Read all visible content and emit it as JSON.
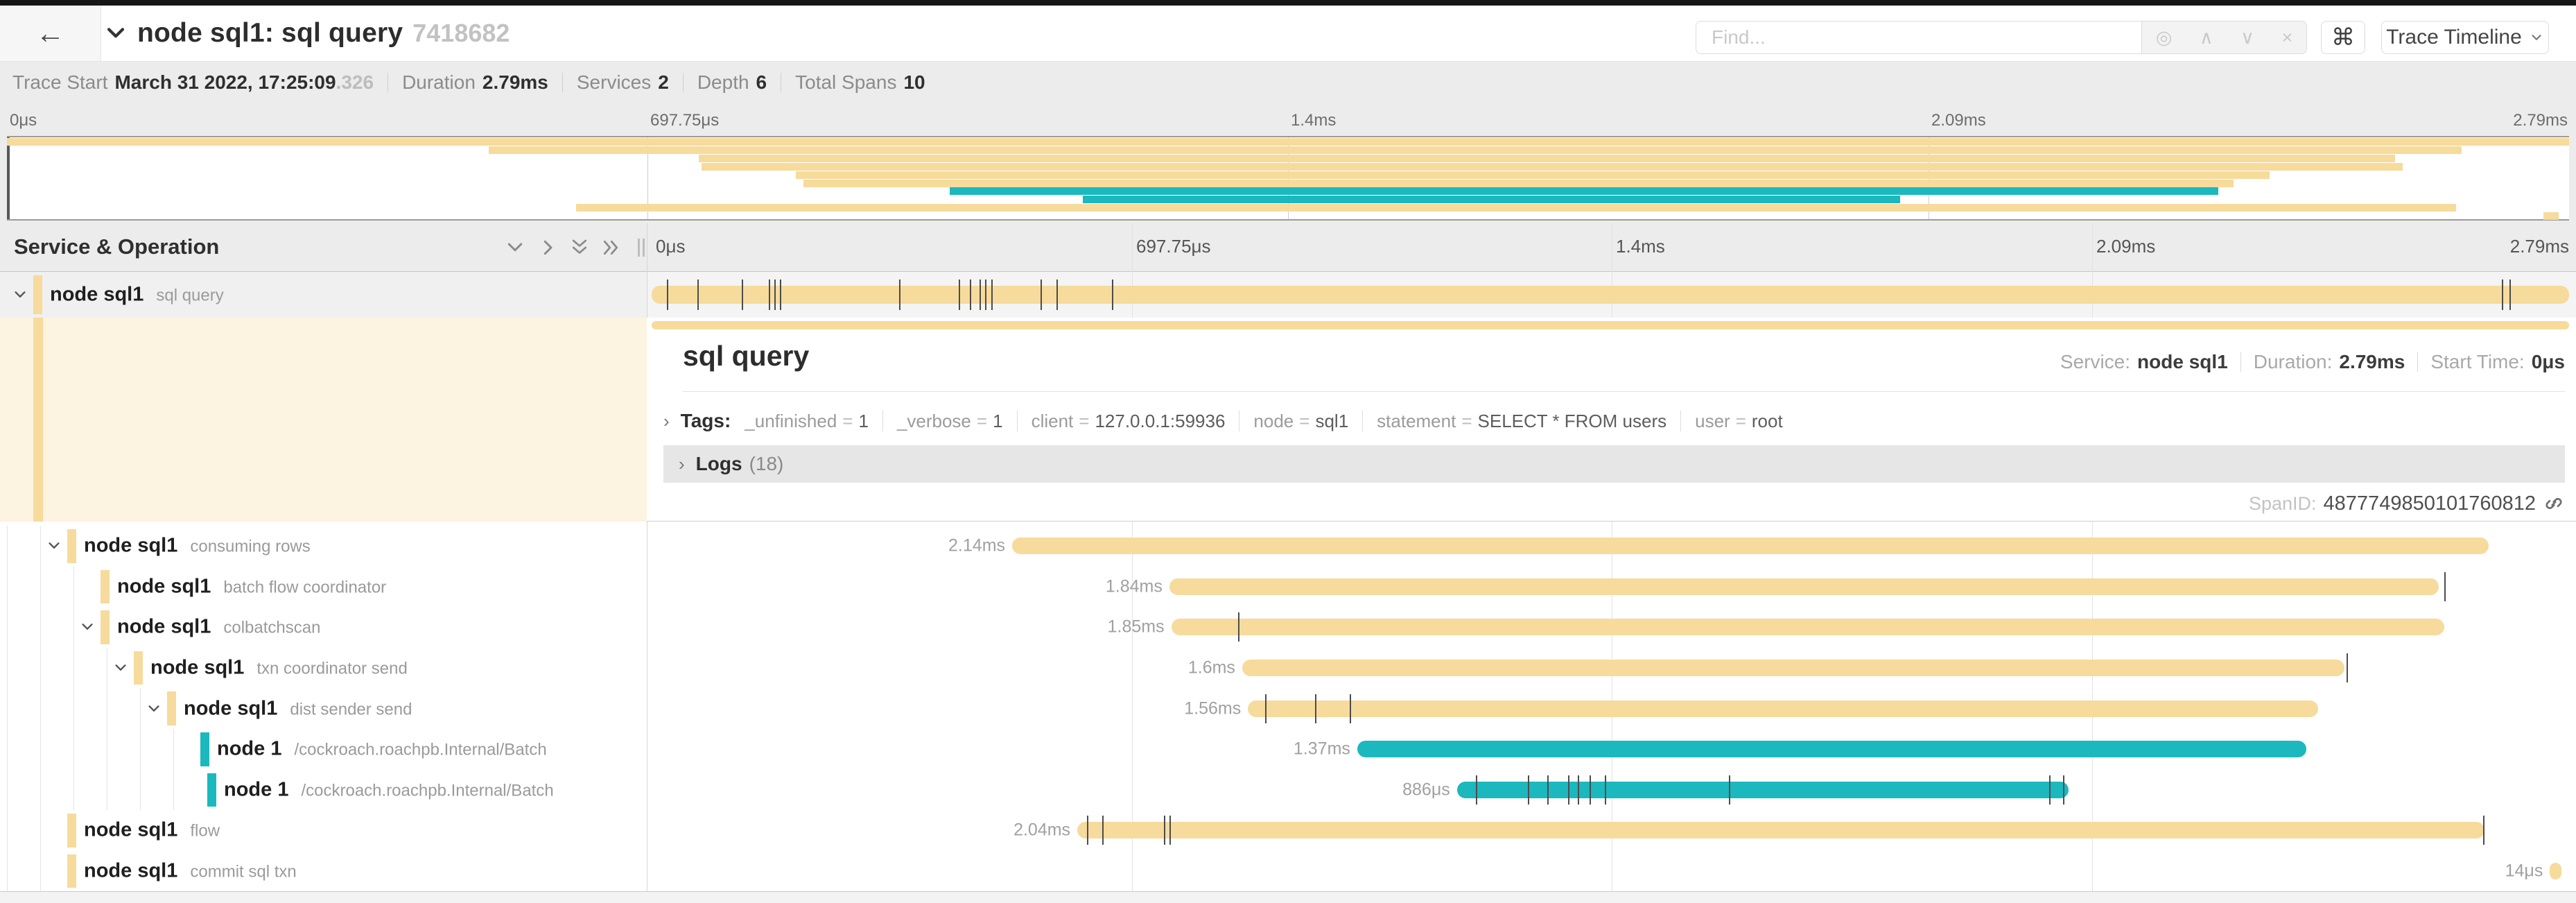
{
  "chrome": {
    "back_icon": "←"
  },
  "header": {
    "title": "node sql1: sql query",
    "trace_id_short": "7418682",
    "find_placeholder": "Find...",
    "find_icons": [
      "◎",
      "∧",
      "∨",
      "×"
    ],
    "command_icon": "⌘",
    "trace_timeline_label": "Trace Timeline"
  },
  "trace_info": {
    "items": [
      {
        "label": "Trace Start",
        "value": "March 31 2022, 17:25:09",
        "suffix": ".326"
      },
      {
        "label": "Duration",
        "value": "2.79ms"
      },
      {
        "label": "Services",
        "value": "2"
      },
      {
        "label": "Depth",
        "value": "6"
      },
      {
        "label": "Total Spans",
        "value": "10"
      }
    ]
  },
  "minimap": {
    "labels": [
      "0μs",
      "697.75μs",
      "1.4ms",
      "2.09ms",
      "2.79ms"
    ]
  },
  "timeline_header": {
    "title": "Service & Operation",
    "ruler_labels": [
      "0μs",
      "697.75μs",
      "1.4ms",
      "2.09ms",
      "2.79ms"
    ]
  },
  "colors": {
    "tan": "#f6db9c",
    "teal": "#1bb8be",
    "tick": "#4c4c4c"
  },
  "spans": [
    {
      "service": "node sql1",
      "operation": "sql query",
      "depth": 0,
      "expander": true,
      "color": "tan",
      "selected": true,
      "duration_label": "",
      "start": 0,
      "end": 100,
      "ticks": [
        0.8,
        2.4,
        4.7,
        6.1,
        6.4,
        6.7,
        12.9,
        16,
        16.6,
        17.1,
        17.4,
        17.7,
        20.3,
        21.1,
        24,
        96.5,
        96.9
      ]
    },
    {
      "service": "node sql1",
      "operation": "consuming rows",
      "depth": 1,
      "expander": true,
      "color": "tan",
      "duration_label": "2.14ms",
      "start": 18.8,
      "end": 95.8,
      "ticks": []
    },
    {
      "service": "node sql1",
      "operation": "batch flow coordinator",
      "depth": 2,
      "expander": false,
      "color": "tan",
      "duration_label": "1.84ms",
      "start": 27.0,
      "end": 93.2,
      "ticks": [
        93.5
      ]
    },
    {
      "service": "node sql1",
      "operation": "colbatchscan",
      "depth": 2,
      "expander": true,
      "color": "tan",
      "duration_label": "1.85ms",
      "start": 27.1,
      "end": 93.5,
      "ticks": [
        30.6
      ]
    },
    {
      "service": "node sql1",
      "operation": "txn coordinator send",
      "depth": 3,
      "expander": true,
      "color": "tan",
      "duration_label": "1.6ms",
      "start": 30.8,
      "end": 88.3,
      "ticks": [
        88.4
      ]
    },
    {
      "service": "node sql1",
      "operation": "dist sender send",
      "depth": 4,
      "expander": true,
      "color": "tan",
      "duration_label": "1.56ms",
      "start": 31.1,
      "end": 86.9,
      "ticks": [
        32.0,
        34.6,
        36.4
      ]
    },
    {
      "service": "node 1",
      "operation": "/cockroach.roachpb.Internal/Batch",
      "depth": 5,
      "expander": false,
      "color": "teal",
      "duration_label": "1.37ms",
      "start": 36.8,
      "end": 86.3,
      "ticks": []
    },
    {
      "service": "node 1",
      "operation": "/cockroach.roachpb.Internal/Batch",
      "depth": 5,
      "indent_extra": 10,
      "expander": false,
      "color": "teal",
      "duration_label": "886μs",
      "start": 42.0,
      "end": 73.9,
      "ticks": [
        43.0,
        45.7,
        46.7,
        47.8,
        48.3,
        48.9,
        49.7,
        56.2,
        72.9,
        73.6
      ]
    },
    {
      "service": "node sql1",
      "operation": "flow",
      "depth": 1,
      "expander": false,
      "color": "tan",
      "duration_label": "2.04ms",
      "start": 22.2,
      "end": 95.6,
      "ticks": [
        22.7,
        23.5,
        26.7,
        27.0,
        95.5
      ]
    },
    {
      "service": "node sql1",
      "operation": "commit sql txn",
      "depth": 1,
      "expander": false,
      "color": "tan",
      "duration_label": "14μs",
      "start": 99.0,
      "end": 99.6,
      "ticks": []
    }
  ],
  "detail": {
    "operation": "sql query",
    "meta": [
      {
        "label": "Service:",
        "value": "node sql1"
      },
      {
        "label": "Duration:",
        "value": "2.79ms"
      },
      {
        "label": "Start Time:",
        "value": "0μs"
      }
    ],
    "tags_twist": "›",
    "tags_label": "Tags:",
    "tags": [
      {
        "key": "_unfinished",
        "value": "1"
      },
      {
        "key": "_verbose",
        "value": "1"
      },
      {
        "key": "client",
        "value": "127.0.0.1:59936"
      },
      {
        "key": "node",
        "value": "sql1"
      },
      {
        "key": "statement",
        "value": "SELECT * FROM users"
      },
      {
        "key": "user",
        "value": "root"
      }
    ],
    "logs_twist": "›",
    "logs_label": "Logs",
    "logs_count": "(18)",
    "span_id_label": "SpanID:",
    "span_id": "4877749850101760812"
  }
}
